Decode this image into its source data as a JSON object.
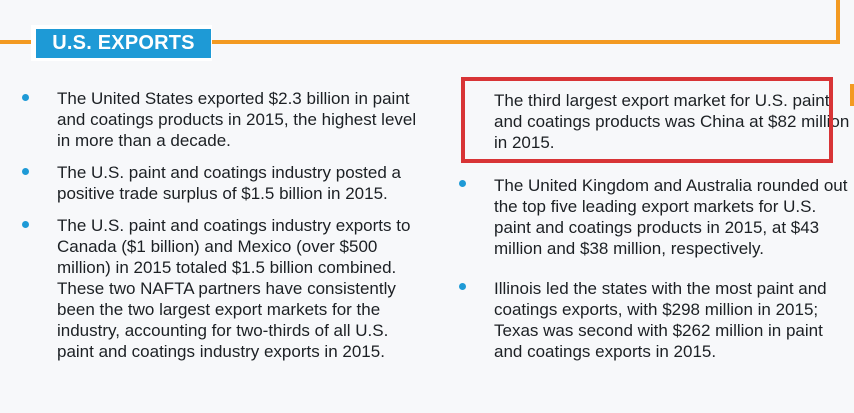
{
  "header": {
    "title": "U.S. EXPORTS"
  },
  "left_column": {
    "items": [
      {
        "text": "The United States exported $2.3 billion in paint and coatings products in 2015, the highest level in more than a decade."
      },
      {
        "text": "The U.S. paint and coatings industry posted a positive trade surplus of $1.5 billion in 2015."
      },
      {
        "text": "The U.S. paint and coatings industry exports to Canada ($1 billion) and Mexico (over $500 million) in 2015 totaled $1.5 billion combined. These two NAFTA partners have consistently been the two largest export markets for the industry, accounting for two-thirds of all U.S. paint and coatings industry exports in 2015."
      }
    ]
  },
  "right_column": {
    "items": [
      {
        "text": "The third largest export market for U.S. paint and coatings products was China at $82 million in 2015.",
        "highlighted": true
      },
      {
        "text": "The United Kingdom and Australia rounded out the top five leading export markets for U.S. paint and coatings products in 2015, at $43 million and $38 million, respectively."
      },
      {
        "text": "Illinois led the states with the most paint and coatings exports, with $298 million in 2015; Texas was second with $262 million in paint and coatings exports in 2015."
      }
    ]
  },
  "colors": {
    "accent_blue": "#1e9ad6",
    "accent_orange": "#f39a21",
    "highlight_red": "#d83436",
    "background": "#f7f8fa",
    "text": "#1c2024"
  }
}
